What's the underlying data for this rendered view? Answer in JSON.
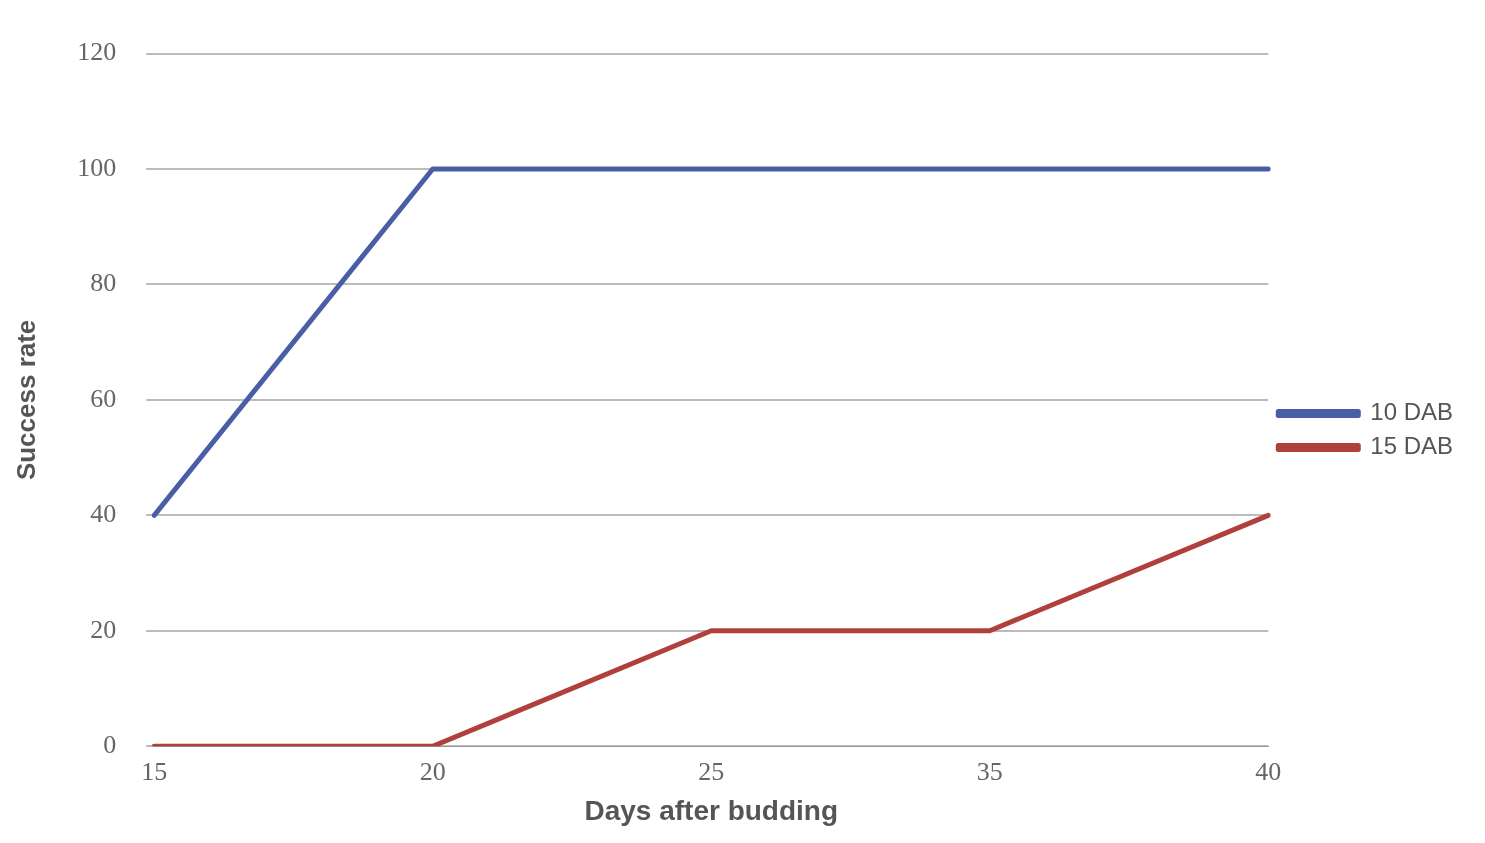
{
  "chart_data": {
    "type": "line",
    "xlabel": "Days after budding",
    "ylabel": "Success rate",
    "categories": [
      "15",
      "20",
      "25",
      "35",
      "40"
    ],
    "series": [
      {
        "name": "10 DAB",
        "color": "#4a5ea8",
        "values": [
          40,
          100,
          100,
          100,
          100
        ]
      },
      {
        "name": "15 DAB",
        "color": "#b0403c",
        "values": [
          0,
          0,
          20,
          20,
          40
        ]
      }
    ],
    "ylim": [
      0,
      120
    ],
    "yticks": [
      0,
      20,
      40,
      60,
      80,
      100,
      120
    ],
    "grid": "y",
    "legend": "right",
    "marker": "none",
    "line_style": "solid"
  }
}
